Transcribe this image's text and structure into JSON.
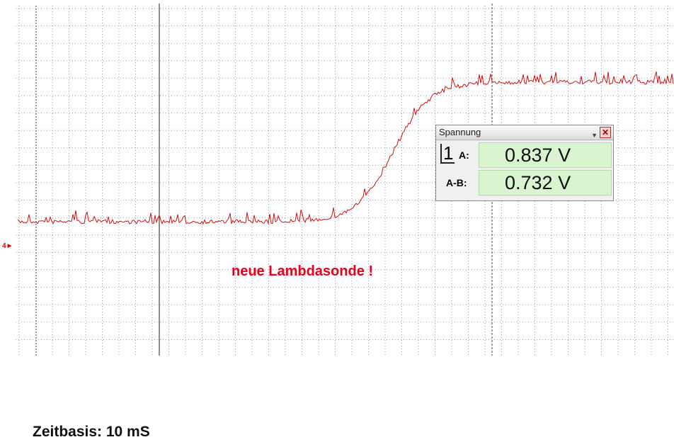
{
  "window": {
    "title": "Spannung",
    "channel": "1",
    "rows": [
      {
        "label": "A:",
        "value": "0.837 V"
      },
      {
        "label": "A-B:",
        "value": "0.732 V"
      }
    ]
  },
  "marker": "4",
  "annotation": "neue Lambdasonde !",
  "footer": "Zeitbasis: 10 mS"
}
